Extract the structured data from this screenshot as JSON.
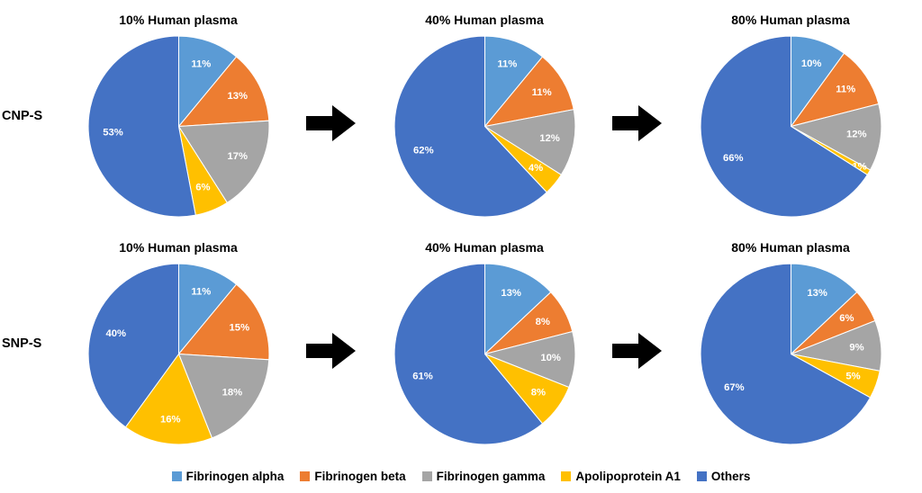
{
  "chart_data": {
    "type": "pie",
    "layout": "2 rows x 3 pie charts with arrows between plasma concentrations",
    "legend_position": "bottom",
    "label_format": "percent",
    "arrow_color": "#000000",
    "legend": [
      {
        "label": "Fibrinogen alpha",
        "color": "#5B9BD5"
      },
      {
        "label": "Fibrinogen beta",
        "color": "#ED7D31"
      },
      {
        "label": "Fibrinogen gamma",
        "color": "#A5A5A5"
      },
      {
        "label": "Apolipoprotein A1",
        "color": "#FFC000"
      },
      {
        "label": "Others",
        "color": "#4472C4"
      }
    ],
    "rows": [
      {
        "label": "CNP-S",
        "pies": [
          {
            "title": "10% Human plasma",
            "values": [
              11,
              13,
              17,
              6,
              53
            ]
          },
          {
            "title": "40% Human plasma",
            "values": [
              11,
              11,
              12,
              4,
              62
            ]
          },
          {
            "title": "80% Human plasma",
            "values": [
              10,
              11,
              12,
              1,
              66
            ]
          }
        ]
      },
      {
        "label": "SNP-S",
        "pies": [
          {
            "title": "10% Human plasma",
            "values": [
              11,
              15,
              18,
              16,
              40
            ]
          },
          {
            "title": "40% Human plasma",
            "values": [
              13,
              8,
              10,
              8,
              61
            ]
          },
          {
            "title": "80% Human plasma",
            "values": [
              13,
              6,
              9,
              5,
              67
            ]
          }
        ]
      }
    ]
  }
}
